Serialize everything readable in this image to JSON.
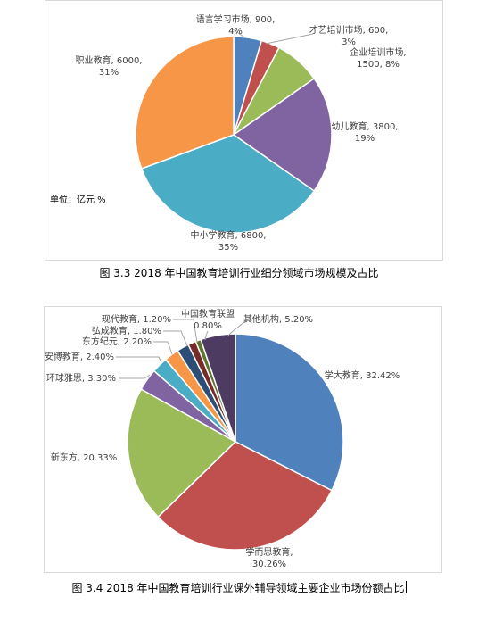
{
  "chart_data": [
    {
      "type": "pie",
      "title": "",
      "unit_note": "单位：亿元  %",
      "categories": [
        "语言学习市场",
        "才艺培训市场",
        "企业培训市场",
        "幼儿教育",
        "中小学教育",
        "职业教育"
      ],
      "values": [
        900,
        600,
        1500,
        3800,
        6800,
        6000
      ],
      "percents": [
        "4%",
        "3%",
        "8%",
        "19%",
        "35%",
        "31%"
      ],
      "label_line1": [
        "语言学习市场, 900,",
        "才艺培训市场, 600,",
        "企业培训市场,",
        "幼儿教育, 3800,",
        "中小学教育, 6800,",
        "职业教育, 6000,"
      ],
      "label_line2": [
        "4%",
        "3%",
        "1500, 8%",
        "19%",
        "35%",
        "31%"
      ],
      "colors": [
        "#4f81bd",
        "#c0504d",
        "#9bbb59",
        "#8064a2",
        "#4bacc6",
        "#f79646"
      ]
    },
    {
      "type": "pie",
      "title": "",
      "categories": [
        "学大教育",
        "学而思教育",
        "新东方",
        "环球雅思",
        "安博教育",
        "东方纪元",
        "弘成教育",
        "现代教育",
        "中国教育联盟",
        "其他机构"
      ],
      "values": [
        32.42,
        30.26,
        20.33,
        3.3,
        2.4,
        2.2,
        1.8,
        1.2,
        0.8,
        5.2
      ],
      "label_line1": [
        "学大教育, 32.42%",
        "学而思教育,",
        "新东方, 20.33%",
        "环球雅思, 3.30%",
        "安博教育, 2.40%",
        "东方纪元, 2.20%",
        "弘成教育, 1.80%",
        "现代教育, 1.20%",
        "中国教育联盟",
        "其他机构, 5.20%"
      ],
      "label_line2": [
        "",
        "30.26%",
        "",
        "",
        "",
        "",
        "",
        "",
        "0.80%",
        ""
      ],
      "colors": [
        "#4f81bd",
        "#c0504d",
        "#9bbb59",
        "#8064a2",
        "#4bacc6",
        "#f79646",
        "#2c4d75",
        "#772c2a",
        "#5f7530",
        "#4d3b62"
      ]
    }
  ],
  "captions": {
    "fig1": "图 3.3 2018 年中国教育培训行业细分领域市场规模及占比",
    "fig2": "图 3.4 2018 年中国教育培训行业课外辅导领域主要企业市场份额占比"
  }
}
